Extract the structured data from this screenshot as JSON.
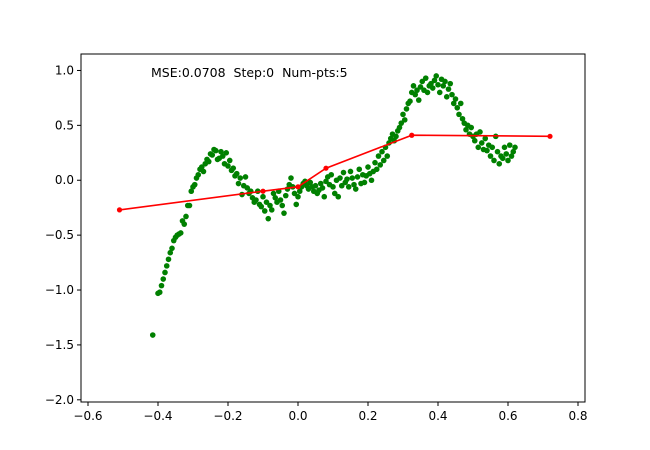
{
  "chart_data": {
    "type": "scatter",
    "annotation": "MSE:0.0708  Step:0  Num-pts:5",
    "xlim": [
      -0.62,
      0.82
    ],
    "ylim": [
      -2.02,
      1.15
    ],
    "x_ticks": [
      -0.6,
      -0.4,
      -0.2,
      0.0,
      0.2,
      0.4,
      0.6,
      0.8
    ],
    "x_tick_labels": [
      "−0.6",
      "−0.4",
      "−0.2",
      "0.0",
      "0.2",
      "0.4",
      "0.6",
      "0.8"
    ],
    "y_ticks": [
      1.0,
      0.5,
      0.0,
      -0.5,
      -1.0,
      -1.5,
      -2.0
    ],
    "y_tick_labels": [
      "1.0",
      "0.5",
      "0.0",
      "−0.5",
      "−1.0",
      "−1.5",
      "−2.0"
    ],
    "grid": false,
    "series": [
      {
        "kind": "scatter",
        "color": "#008000",
        "points": [
          [
            -0.415,
            -1.41
          ],
          [
            -0.4,
            -1.03
          ],
          [
            -0.395,
            -1.02
          ],
          [
            -0.39,
            -0.96
          ],
          [
            -0.385,
            -0.9
          ],
          [
            -0.38,
            -0.84
          ],
          [
            -0.375,
            -0.78
          ],
          [
            -0.37,
            -0.72
          ],
          [
            -0.365,
            -0.66
          ],
          [
            -0.36,
            -0.62
          ],
          [
            -0.355,
            -0.55
          ],
          [
            -0.35,
            -0.52
          ],
          [
            -0.345,
            -0.5
          ],
          [
            -0.34,
            -0.49
          ],
          [
            -0.335,
            -0.48
          ],
          [
            -0.33,
            -0.37
          ],
          [
            -0.325,
            -0.4
          ],
          [
            -0.32,
            -0.33
          ],
          [
            -0.315,
            -0.23
          ],
          [
            -0.31,
            -0.23
          ],
          [
            -0.305,
            -0.1
          ],
          [
            -0.3,
            -0.06
          ],
          [
            -0.295,
            -0.04
          ],
          [
            -0.29,
            0.02
          ],
          [
            -0.285,
            0.05
          ],
          [
            -0.28,
            0.1
          ],
          [
            -0.275,
            0.12
          ],
          [
            -0.27,
            0.08
          ],
          [
            -0.265,
            0.15
          ],
          [
            -0.26,
            0.19
          ],
          [
            -0.255,
            0.17
          ],
          [
            -0.25,
            0.24
          ],
          [
            -0.245,
            0.23
          ],
          [
            -0.24,
            0.28
          ],
          [
            -0.235,
            0.27
          ],
          [
            -0.23,
            0.19
          ],
          [
            -0.225,
            0.2
          ],
          [
            -0.22,
            0.26
          ],
          [
            -0.215,
            0.22
          ],
          [
            -0.21,
            0.15
          ],
          [
            -0.205,
            0.25
          ],
          [
            -0.2,
            0.13
          ],
          [
            -0.195,
            0.18
          ],
          [
            -0.19,
            0.09
          ],
          [
            -0.185,
            0.11
          ],
          [
            -0.18,
            0.04
          ],
          [
            -0.175,
            0.06
          ],
          [
            -0.17,
            -0.03
          ],
          [
            -0.165,
            0.02
          ],
          [
            -0.16,
            -0.13
          ],
          [
            -0.155,
            -0.05
          ],
          [
            -0.15,
            0.03
          ],
          [
            -0.145,
            -0.07
          ],
          [
            -0.14,
            -0.12
          ],
          [
            -0.135,
            -0.1
          ],
          [
            -0.13,
            -0.16
          ],
          [
            -0.125,
            -0.2
          ],
          [
            -0.12,
            -0.18
          ],
          [
            -0.115,
            -0.1
          ],
          [
            -0.11,
            -0.22
          ],
          [
            -0.105,
            -0.24
          ],
          [
            -0.1,
            -0.15
          ],
          [
            -0.095,
            -0.28
          ],
          [
            -0.09,
            -0.2
          ],
          [
            -0.085,
            -0.35
          ],
          [
            -0.08,
            -0.23
          ],
          [
            -0.075,
            -0.27
          ],
          [
            -0.07,
            -0.12
          ],
          [
            -0.065,
            -0.16
          ],
          [
            -0.06,
            -0.2
          ],
          [
            -0.055,
            -0.1
          ],
          [
            -0.05,
            -0.18
          ],
          [
            -0.045,
            -0.23
          ],
          [
            -0.04,
            -0.3
          ],
          [
            -0.035,
            -0.14
          ],
          [
            -0.03,
            -0.08
          ],
          [
            -0.025,
            -0.04
          ],
          [
            -0.02,
            0.02
          ],
          [
            -0.015,
            -0.06
          ],
          [
            -0.01,
            -0.12
          ],
          [
            -0.005,
            -0.22
          ],
          [
            0.0,
            -0.15
          ],
          [
            0.005,
            -0.1
          ],
          [
            0.01,
            -0.06
          ],
          [
            0.015,
            -0.03
          ],
          [
            0.02,
            -0.01
          ],
          [
            0.025,
            -0.05
          ],
          [
            0.03,
            -0.08
          ],
          [
            0.035,
            -0.02
          ],
          [
            0.04,
            -0.06
          ],
          [
            0.045,
            -0.1
          ],
          [
            0.05,
            -0.05
          ],
          [
            0.055,
            -0.12
          ],
          [
            0.06,
            -0.09
          ],
          [
            0.065,
            -0.03
          ],
          [
            0.07,
            -0.07
          ],
          [
            0.075,
            -0.15
          ],
          [
            0.08,
            -0.01
          ],
          [
            0.085,
            0.03
          ],
          [
            0.09,
            -0.04
          ],
          [
            0.095,
            0.05
          ],
          [
            0.1,
            -0.06
          ],
          [
            0.105,
            -0.12
          ],
          [
            0.11,
            0.0
          ],
          [
            0.115,
            -0.15
          ],
          [
            0.12,
            0.02
          ],
          [
            0.125,
            -0.05
          ],
          [
            0.13,
            0.07
          ],
          [
            0.135,
            -0.02
          ],
          [
            0.14,
            0.01
          ],
          [
            0.145,
            -0.06
          ],
          [
            0.15,
            0.08
          ],
          [
            0.155,
            0.02
          ],
          [
            0.16,
            -0.04
          ],
          [
            0.165,
            -0.08
          ],
          [
            0.17,
            0.03
          ],
          [
            0.175,
            0.1
          ],
          [
            0.18,
            -0.03
          ],
          [
            0.185,
            0.05
          ],
          [
            0.19,
            -0.02
          ],
          [
            0.195,
            0.04
          ],
          [
            0.2,
            0.12
          ],
          [
            0.205,
            0.06
          ],
          [
            0.21,
            0.0
          ],
          [
            0.215,
            0.08
          ],
          [
            0.22,
            0.16
          ],
          [
            0.225,
            0.1
          ],
          [
            0.23,
            0.22
          ],
          [
            0.235,
            0.14
          ],
          [
            0.24,
            0.26
          ],
          [
            0.245,
            0.18
          ],
          [
            0.25,
            0.3
          ],
          [
            0.255,
            0.22
          ],
          [
            0.26,
            0.34
          ],
          [
            0.265,
            0.38
          ],
          [
            0.27,
            0.42
          ],
          [
            0.275,
            0.36
          ],
          [
            0.28,
            0.4
          ],
          [
            0.285,
            0.45
          ],
          [
            0.29,
            0.48
          ],
          [
            0.295,
            0.52
          ],
          [
            0.3,
            0.6
          ],
          [
            0.305,
            0.55
          ],
          [
            0.31,
            0.65
          ],
          [
            0.315,
            0.7
          ],
          [
            0.32,
            0.72
          ],
          [
            0.325,
            0.8
          ],
          [
            0.33,
            0.86
          ],
          [
            0.335,
            0.78
          ],
          [
            0.34,
            0.82
          ],
          [
            0.345,
            0.73
          ],
          [
            0.35,
            0.85
          ],
          [
            0.355,
            0.9
          ],
          [
            0.36,
            0.82
          ],
          [
            0.365,
            0.93
          ],
          [
            0.37,
            0.8
          ],
          [
            0.375,
            0.86
          ],
          [
            0.38,
            0.88
          ],
          [
            0.385,
            0.84
          ],
          [
            0.39,
            0.91
          ],
          [
            0.395,
            0.95
          ],
          [
            0.4,
            0.87
          ],
          [
            0.405,
            0.8
          ],
          [
            0.41,
            0.92
          ],
          [
            0.415,
            0.86
          ],
          [
            0.42,
            0.9
          ],
          [
            0.425,
            0.76
          ],
          [
            0.43,
            0.83
          ],
          [
            0.435,
            0.88
          ],
          [
            0.44,
            0.78
          ],
          [
            0.445,
            0.7
          ],
          [
            0.45,
            0.74
          ],
          [
            0.455,
            0.66
          ],
          [
            0.46,
            0.6
          ],
          [
            0.465,
            0.7
          ],
          [
            0.47,
            0.56
          ],
          [
            0.475,
            0.52
          ],
          [
            0.48,
            0.46
          ],
          [
            0.485,
            0.5
          ],
          [
            0.49,
            0.42
          ],
          [
            0.495,
            0.48
          ],
          [
            0.5,
            0.4
          ],
          [
            0.505,
            0.36
          ],
          [
            0.51,
            0.42
          ],
          [
            0.515,
            0.3
          ],
          [
            0.52,
            0.44
          ],
          [
            0.525,
            0.34
          ],
          [
            0.53,
            0.28
          ],
          [
            0.535,
            0.38
          ],
          [
            0.54,
            0.27
          ],
          [
            0.545,
            0.32
          ],
          [
            0.55,
            0.22
          ],
          [
            0.555,
            0.3
          ],
          [
            0.56,
            0.18
          ],
          [
            0.565,
            0.4
          ],
          [
            0.57,
            0.26
          ],
          [
            0.575,
            0.15
          ],
          [
            0.58,
            0.22
          ],
          [
            0.585,
            0.2
          ],
          [
            0.59,
            0.3
          ],
          [
            0.595,
            0.24
          ],
          [
            0.6,
            0.18
          ],
          [
            0.605,
            0.32
          ],
          [
            0.61,
            0.22
          ],
          [
            0.615,
            0.26
          ],
          [
            0.62,
            0.3
          ]
        ]
      },
      {
        "kind": "line",
        "color": "#ff0000",
        "points": [
          [
            -0.51,
            -0.27
          ],
          [
            -0.1,
            -0.1
          ],
          [
            0.0,
            -0.06
          ],
          [
            0.08,
            0.11
          ],
          [
            0.325,
            0.41
          ],
          [
            0.72,
            0.4
          ]
        ]
      }
    ]
  }
}
